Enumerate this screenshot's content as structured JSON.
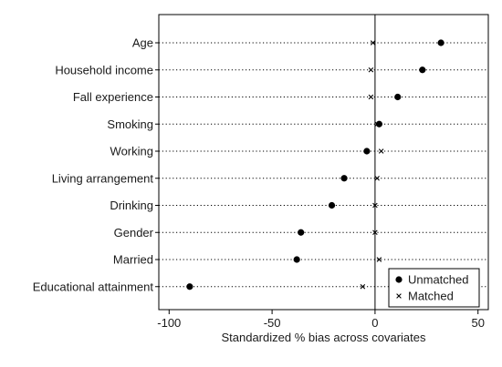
{
  "chart_data": {
    "type": "scatter",
    "title": "",
    "xlabel": "Standardized % bias across covariates",
    "ylabel": "",
    "xlim": [
      -105,
      55
    ],
    "xticks": [
      -100,
      -50,
      0,
      50
    ],
    "xtick_labels": [
      "-100",
      "-50",
      "0",
      "50"
    ],
    "grid": "dotted horizontal line per covariate",
    "reference_line_x": 0,
    "legend_position": "bottom-right",
    "categories": [
      "Age",
      "Household income",
      "Fall experience",
      "Smoking",
      "Working",
      "Living arrangement",
      "Drinking",
      "Gender",
      "Married",
      "Educational attainment"
    ],
    "series": [
      {
        "name": "Unmatched",
        "marker": "filled-circle",
        "values": [
          32,
          23,
          11,
          2,
          -4,
          -15,
          -21,
          -36,
          -38,
          -90
        ]
      },
      {
        "name": "Matched",
        "marker": "x-cross",
        "values": [
          -1,
          -2,
          -2,
          1,
          3,
          1,
          0,
          0,
          2,
          -6
        ]
      }
    ]
  },
  "colors": {
    "background": "#ffffff",
    "plot_border": "#000000",
    "markers": "#000000",
    "gridline": "#000000"
  }
}
